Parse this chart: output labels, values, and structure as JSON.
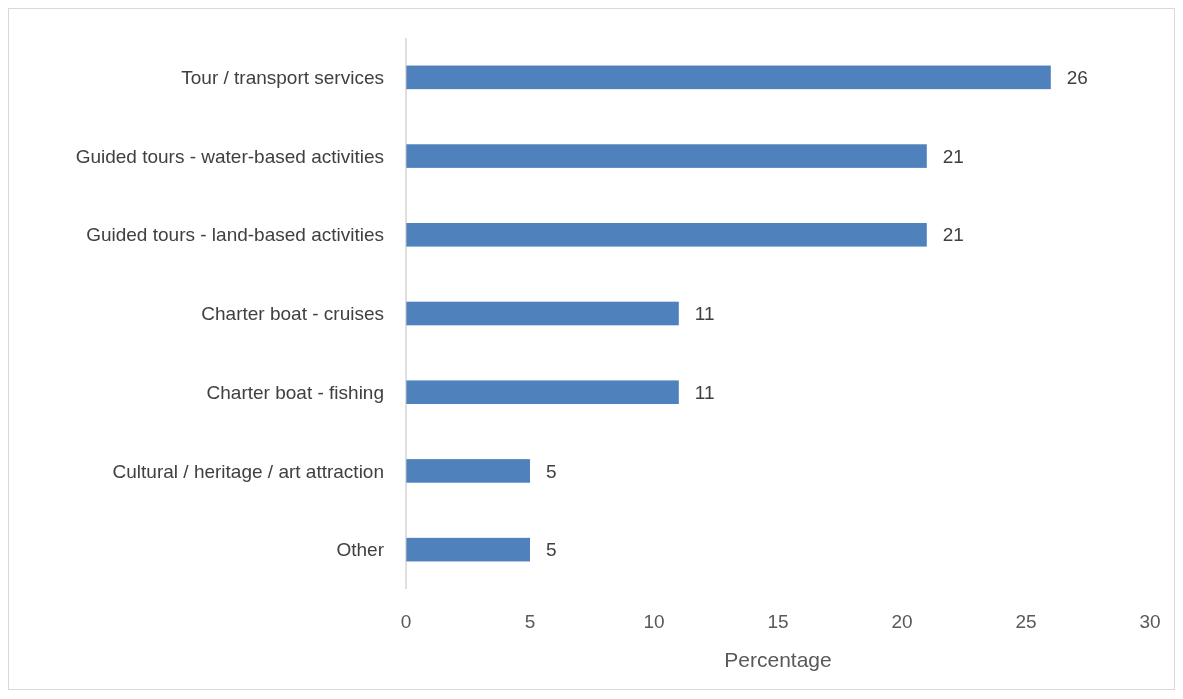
{
  "chart_data": {
    "type": "bar",
    "orientation": "horizontal",
    "categories": [
      "Tour / transport services",
      "Guided tours - water-based activities",
      "Guided tours - land-based activities",
      "Charter boat - cruises",
      "Charter boat - fishing",
      "Cultural / heritage / art attraction",
      "Other"
    ],
    "values": [
      26,
      21,
      21,
      11,
      11,
      5,
      5
    ],
    "color": "#4f81bd",
    "xlabel": "Percentage",
    "xlim": [
      0,
      30
    ],
    "xticks": [
      0,
      5,
      10,
      15,
      20,
      25,
      30
    ],
    "data_labels": true
  }
}
